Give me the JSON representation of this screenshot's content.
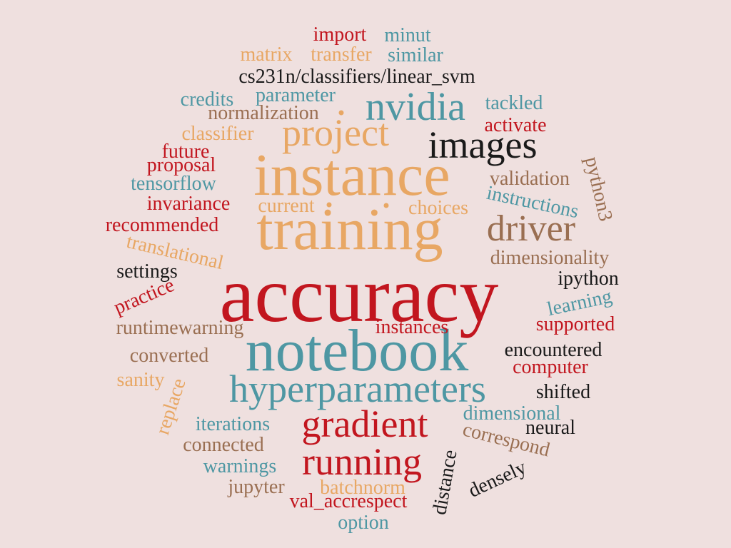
{
  "colors": {
    "background": "#efe0df",
    "red": "#c2161f",
    "orange": "#e8a764",
    "teal": "#4e97a3",
    "brown": "#9a6f52",
    "black": "#1a1a1a"
  },
  "words": [
    {
      "text": "accuracy",
      "color": "red"
    },
    {
      "text": "notebook",
      "color": "teal"
    },
    {
      "text": "instance",
      "color": "orange"
    },
    {
      "text": "training",
      "color": "orange"
    },
    {
      "text": "hyperparameters",
      "color": "teal"
    },
    {
      "text": "images",
      "color": "black"
    },
    {
      "text": "driver",
      "color": "brown"
    },
    {
      "text": "gradient",
      "color": "red"
    },
    {
      "text": "running",
      "color": "red"
    },
    {
      "text": "nvidia",
      "color": "teal"
    },
    {
      "text": "project",
      "color": "orange"
    },
    {
      "text": "cs231n/classifiers/linear_svm",
      "color": "black"
    },
    {
      "text": "import",
      "color": "red"
    },
    {
      "text": "minut",
      "color": "teal"
    },
    {
      "text": "matrix",
      "color": "orange"
    },
    {
      "text": "transfer",
      "color": "orange"
    },
    {
      "text": "similar",
      "color": "teal"
    },
    {
      "text": "credits",
      "color": "teal"
    },
    {
      "text": "parameter",
      "color": "teal"
    },
    {
      "text": "tackled",
      "color": "teal"
    },
    {
      "text": "normalization",
      "color": "brown"
    },
    {
      "text": "activate",
      "color": "red"
    },
    {
      "text": "classifier",
      "color": "orange"
    },
    {
      "text": "future",
      "color": "red"
    },
    {
      "text": "proposal",
      "color": "red"
    },
    {
      "text": "validation",
      "color": "brown"
    },
    {
      "text": "python3",
      "color": "brown"
    },
    {
      "text": "tensorflow",
      "color": "teal"
    },
    {
      "text": "instructions",
      "color": "teal"
    },
    {
      "text": "invariance",
      "color": "red"
    },
    {
      "text": "current",
      "color": "orange"
    },
    {
      "text": "choices",
      "color": "orange"
    },
    {
      "text": "recommended",
      "color": "red"
    },
    {
      "text": "translational",
      "color": "orange"
    },
    {
      "text": "dimensionality",
      "color": "brown"
    },
    {
      "text": "settings",
      "color": "black"
    },
    {
      "text": "ipython",
      "color": "black"
    },
    {
      "text": "practice",
      "color": "red"
    },
    {
      "text": "learning",
      "color": "teal"
    },
    {
      "text": "runtimewarning",
      "color": "brown"
    },
    {
      "text": "instances",
      "color": "red"
    },
    {
      "text": "supported",
      "color": "red"
    },
    {
      "text": "converted",
      "color": "brown"
    },
    {
      "text": "encountered",
      "color": "black"
    },
    {
      "text": "sanity",
      "color": "orange"
    },
    {
      "text": "computer",
      "color": "red"
    },
    {
      "text": "replace",
      "color": "orange"
    },
    {
      "text": "shifted",
      "color": "black"
    },
    {
      "text": "iterations",
      "color": "teal"
    },
    {
      "text": "dimensional",
      "color": "teal"
    },
    {
      "text": "neural",
      "color": "black"
    },
    {
      "text": "correspond",
      "color": "brown"
    },
    {
      "text": "connected",
      "color": "brown"
    },
    {
      "text": "warnings",
      "color": "teal"
    },
    {
      "text": "distance",
      "color": "black"
    },
    {
      "text": "densely",
      "color": "black"
    },
    {
      "text": "jupyter",
      "color": "brown"
    },
    {
      "text": "batchnorm",
      "color": "orange"
    },
    {
      "text": "val_accrespect",
      "color": "red"
    },
    {
      "text": "option",
      "color": "teal"
    }
  ]
}
